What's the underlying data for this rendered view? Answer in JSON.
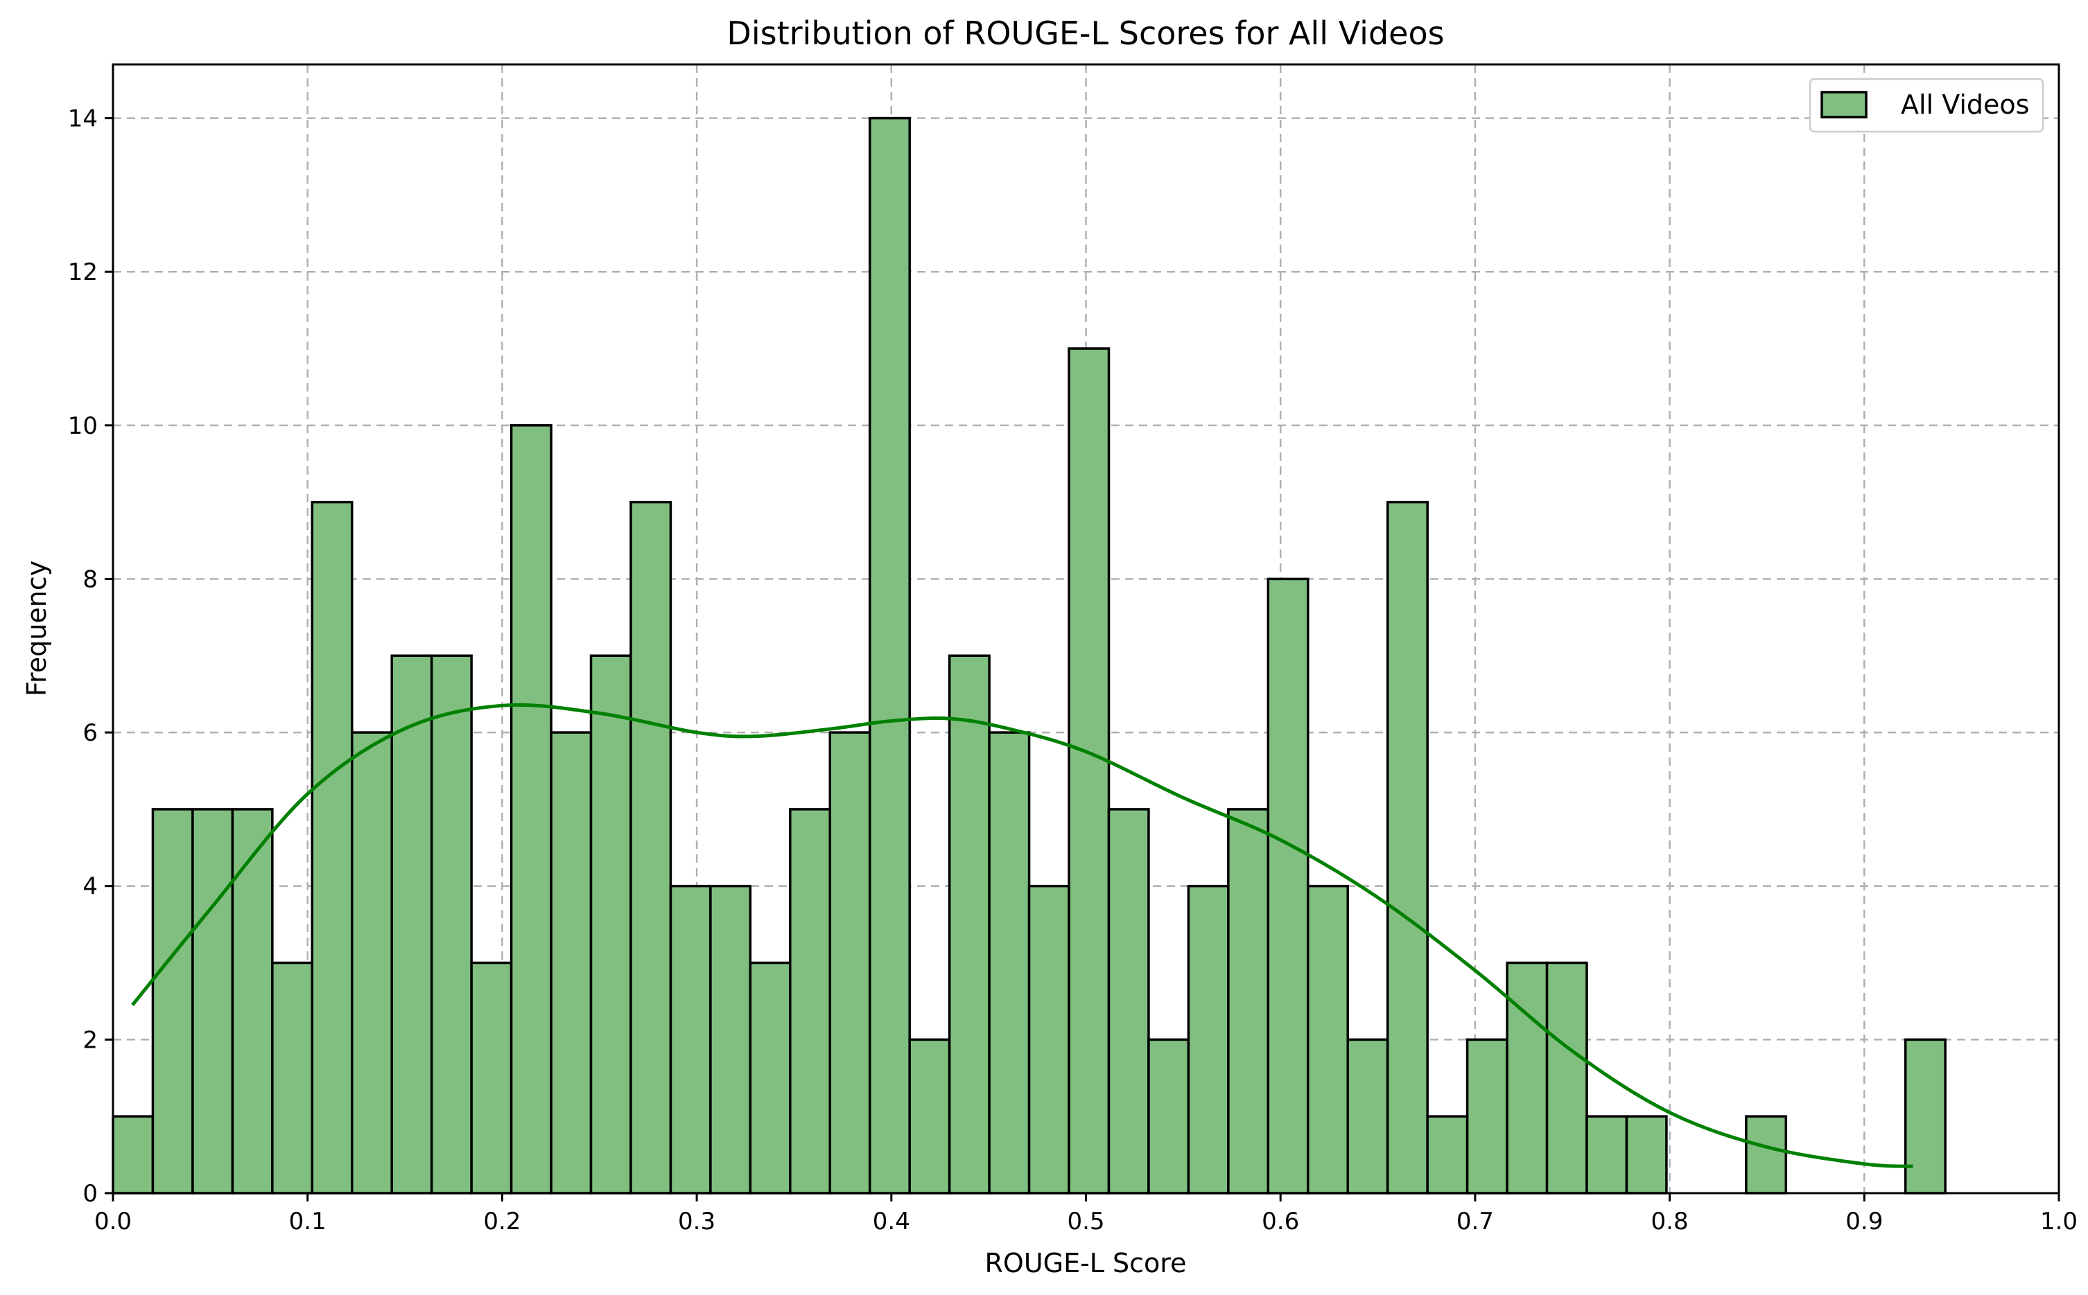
{
  "chart_data": {
    "type": "bar",
    "title": "Distribution of ROUGE-L Scores for All Videos",
    "xlabel": "ROUGE-L Score",
    "ylabel": "Frequency",
    "xlim": [
      0.0,
      1.0
    ],
    "ylim": [
      0,
      14.7
    ],
    "x_ticks": [
      "0.0",
      "0.1",
      "0.2",
      "0.3",
      "0.4",
      "0.5",
      "0.6",
      "0.7",
      "0.8",
      "0.9",
      "1.0"
    ],
    "y_ticks": [
      "0",
      "2",
      "4",
      "6",
      "8",
      "10",
      "12",
      "14"
    ],
    "grid": true,
    "legend": {
      "position": "top-right",
      "entries": [
        "All Videos"
      ]
    },
    "bar_color": "#80bf80",
    "kde_color": "#008000",
    "bin_start": 0.0,
    "bin_width": 0.02047,
    "series": [
      {
        "name": "All Videos",
        "values": [
          1,
          5,
          5,
          5,
          3,
          9,
          6,
          7,
          7,
          3,
          10,
          6,
          7,
          9,
          4,
          4,
          3,
          5,
          6,
          14,
          2,
          7,
          6,
          4,
          11,
          5,
          2,
          4,
          5,
          8,
          4,
          2,
          9,
          1,
          2,
          3,
          3,
          1,
          1,
          0,
          0,
          1,
          0,
          0,
          0,
          2
        ]
      }
    ],
    "kde": {
      "x": [
        0.01,
        0.05,
        0.1,
        0.15,
        0.2,
        0.25,
        0.3,
        0.33,
        0.37,
        0.4,
        0.43,
        0.46,
        0.5,
        0.55,
        0.6,
        0.65,
        0.7,
        0.75,
        0.8,
        0.85,
        0.9,
        0.925
      ],
      "y": [
        2.45,
        3.7,
        5.2,
        6.05,
        6.35,
        6.25,
        6.0,
        5.95,
        6.05,
        6.15,
        6.18,
        6.05,
        5.75,
        5.15,
        4.6,
        3.85,
        2.9,
        1.85,
        1.05,
        0.6,
        0.38,
        0.35
      ]
    }
  }
}
